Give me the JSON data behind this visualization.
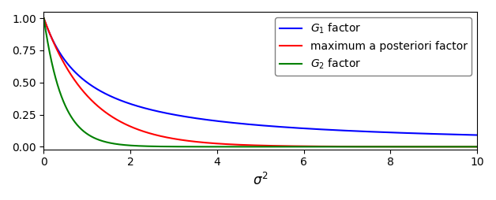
{
  "title": "",
  "xlabel": "$\\sigma^2$",
  "ylabel": "",
  "xlim": [
    0,
    10
  ],
  "ylim": [
    -0.02,
    1.05
  ],
  "xticks": [
    0,
    2,
    4,
    6,
    8,
    10
  ],
  "yticks": [
    0.0,
    0.25,
    0.5,
    0.75,
    1.0
  ],
  "line_colors": [
    "blue",
    "red",
    "green"
  ],
  "legend_labels": [
    "$\\mathit{G}_1$ factor",
    "maximum a posteriori factor",
    "$\\mathit{G}_2$ factor"
  ],
  "legend_loc": "upper right",
  "figsize": [
    6.28,
    2.54
  ],
  "dpi": 100,
  "g1_formula": "1/(1+s)",
  "map_k": 0.7,
  "g2_k": 1.5
}
